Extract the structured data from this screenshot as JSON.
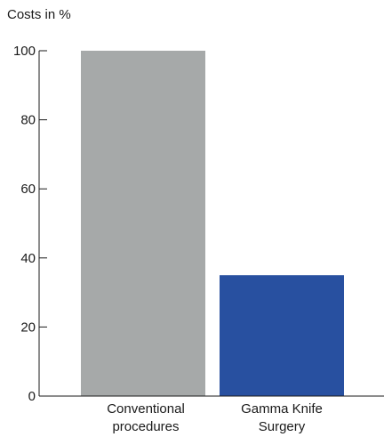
{
  "chart_data": {
    "type": "bar",
    "title": "",
    "ylabel": "Costs in %",
    "xlabel": "",
    "categories": [
      "Conventional\nprocedures",
      "Gamma Knife\nSurgery"
    ],
    "values": [
      100,
      35
    ],
    "colors": [
      "#a6a9a9",
      "#2850a0"
    ],
    "ylim": [
      0,
      100
    ],
    "yticks": [
      0,
      20,
      40,
      60,
      80,
      100
    ],
    "grid": false,
    "legend": "none"
  }
}
